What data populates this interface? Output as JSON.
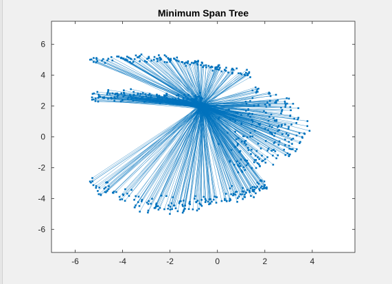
{
  "figure": {
    "background_color": "#f0f0f0",
    "axes_background_color": "#ffffff",
    "axes_color": "#262626"
  },
  "chart_data": {
    "type": "scatter",
    "title": "Minimum Span Tree",
    "xlabel": "",
    "ylabel": "",
    "xlim": [
      -7,
      5.8
    ],
    "ylim": [
      -7.5,
      7.5
    ],
    "xticks": [
      -6,
      -4,
      -2,
      0,
      2,
      4
    ],
    "yticks": [
      -6,
      -4,
      -2,
      0,
      2,
      4,
      6
    ],
    "xtick_labels": [
      "-6",
      "-4",
      "-2",
      "0",
      "2",
      "4"
    ],
    "ytick_labels": [
      "-6",
      "-4",
      "-2",
      "0",
      "2",
      "4",
      "6"
    ],
    "grid": false,
    "legend": "none",
    "series_color": "#0072bd",
    "hub": {
      "x": -0.65,
      "y": 2.0
    },
    "clusters": [
      {
        "n": 140,
        "x_range": [
          -5.4,
          1.4
        ],
        "y_center": 4.9,
        "y_spread": 0.55,
        "shape": "upper-arc"
      },
      {
        "n": 150,
        "x_range": [
          -5.3,
          -0.6
        ],
        "y_center": 2.7,
        "y_spread": 0.35,
        "shape": "band"
      },
      {
        "n": 220,
        "x_range": [
          -0.8,
          4.2
        ],
        "y_center": 0.8,
        "y_spread": 2.2,
        "shape": "right-lobe"
      },
      {
        "n": 190,
        "x_range": [
          -5.4,
          2.2
        ],
        "y_center": -3.2,
        "y_spread": 1.4,
        "shape": "lower-arc"
      }
    ]
  }
}
